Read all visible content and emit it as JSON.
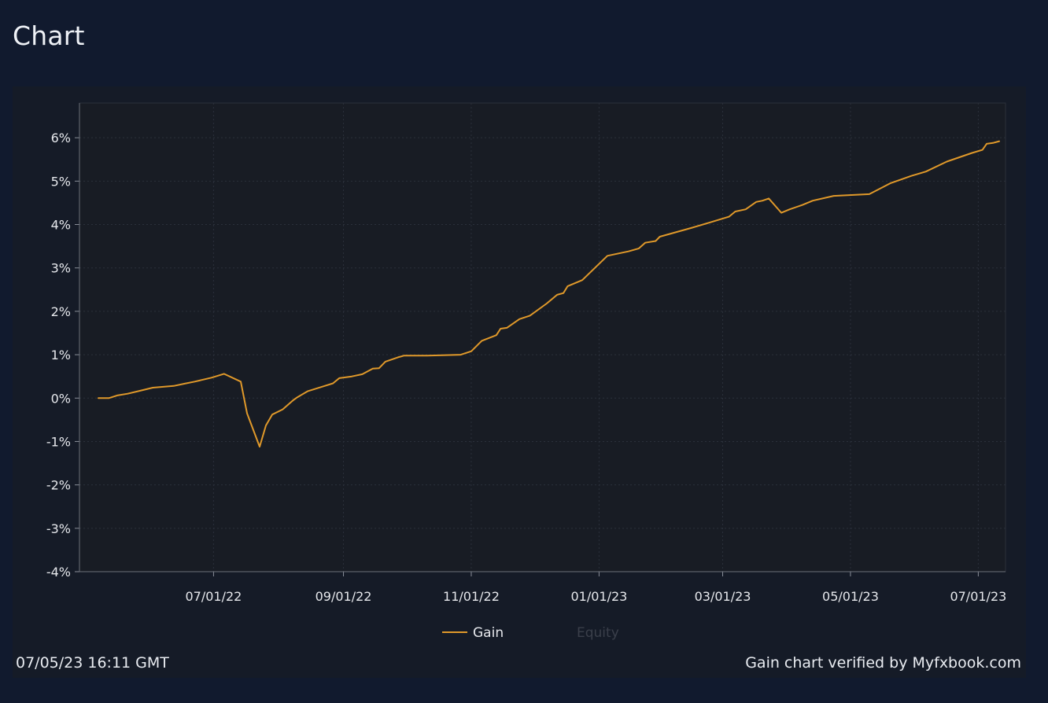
{
  "page": {
    "heading": "Chart"
  },
  "chart_footer": {
    "timestamp": "07/05/23 16:11 GMT",
    "verified_text": "Gain chart verified by Myfxbook.com"
  },
  "colors": {
    "background": "#111a2e",
    "panel": "#151b27",
    "plot": "#181c24",
    "gain_line": "#e0992a",
    "equity_legend": "#3a3f4a"
  },
  "chart_data": {
    "type": "line",
    "title": "",
    "xlabel": "",
    "ylabel": "",
    "ylim": [
      -4,
      6.8
    ],
    "yticks": [
      -4,
      -3,
      -2,
      -1,
      0,
      1,
      2,
      3,
      4,
      5,
      6
    ],
    "ytick_labels": [
      "-4%",
      "-3%",
      "-2%",
      "-1%",
      "0%",
      "1%",
      "2%",
      "3%",
      "4%",
      "5%",
      "6%"
    ],
    "xlim": [
      "2022-04-28",
      "2023-07-14"
    ],
    "xticks": [
      "2022-07-01",
      "2022-09-01",
      "2022-11-01",
      "2023-01-01",
      "2023-03-01",
      "2023-05-01",
      "2023-07-01"
    ],
    "xtick_labels": [
      "07/01/22",
      "09/01/22",
      "11/01/22",
      "01/01/23",
      "03/01/23",
      "05/01/23",
      "07/01/23"
    ],
    "grid": true,
    "legend_position": "bottom-center",
    "legend": [
      {
        "name": "Gain",
        "active": true
      },
      {
        "name": "Equity",
        "active": false
      }
    ],
    "series": [
      {
        "name": "Gain",
        "points": [
          [
            "2022-05-07",
            0.0
          ],
          [
            "2022-05-12",
            0.0
          ],
          [
            "2022-05-16",
            0.06
          ],
          [
            "2022-05-21",
            0.1
          ],
          [
            "2022-05-27",
            0.17
          ],
          [
            "2022-06-02",
            0.24
          ],
          [
            "2022-06-12",
            0.28
          ],
          [
            "2022-06-17",
            0.33
          ],
          [
            "2022-06-22",
            0.38
          ],
          [
            "2022-06-30",
            0.47
          ],
          [
            "2022-07-06",
            0.56
          ],
          [
            "2022-07-14",
            0.38
          ],
          [
            "2022-07-17",
            -0.35
          ],
          [
            "2022-07-23",
            -1.12
          ],
          [
            "2022-07-26",
            -0.63
          ],
          [
            "2022-07-29",
            -0.38
          ],
          [
            "2022-08-03",
            -0.26
          ],
          [
            "2022-08-08",
            -0.05
          ],
          [
            "2022-08-10",
            0.02
          ],
          [
            "2022-08-15",
            0.16
          ],
          [
            "2022-08-23",
            0.28
          ],
          [
            "2022-08-27",
            0.34
          ],
          [
            "2022-08-30",
            0.46
          ],
          [
            "2022-09-05",
            0.5
          ],
          [
            "2022-09-10",
            0.55
          ],
          [
            "2022-09-15",
            0.68
          ],
          [
            "2022-09-18",
            0.69
          ],
          [
            "2022-09-21",
            0.84
          ],
          [
            "2022-09-27",
            0.94
          ],
          [
            "2022-09-30",
            0.98
          ],
          [
            "2022-10-11",
            0.98
          ],
          [
            "2022-10-27",
            1.0
          ],
          [
            "2022-11-01",
            1.08
          ],
          [
            "2022-11-06",
            1.32
          ],
          [
            "2022-11-13",
            1.45
          ],
          [
            "2022-11-15",
            1.6
          ],
          [
            "2022-11-18",
            1.62
          ],
          [
            "2022-11-24",
            1.82
          ],
          [
            "2022-11-29",
            1.9
          ],
          [
            "2022-12-07",
            2.18
          ],
          [
            "2022-12-12",
            2.38
          ],
          [
            "2022-12-15",
            2.42
          ],
          [
            "2022-12-17",
            2.58
          ],
          [
            "2022-12-24",
            2.72
          ],
          [
            "2023-01-05",
            3.28
          ],
          [
            "2023-01-15",
            3.38
          ],
          [
            "2023-01-20",
            3.45
          ],
          [
            "2023-01-23",
            3.58
          ],
          [
            "2023-01-28",
            3.62
          ],
          [
            "2023-01-30",
            3.72
          ],
          [
            "2023-02-14",
            3.92
          ],
          [
            "2023-02-23",
            4.05
          ],
          [
            "2023-03-04",
            4.18
          ],
          [
            "2023-03-07",
            4.3
          ],
          [
            "2023-03-12",
            4.35
          ],
          [
            "2023-03-17",
            4.52
          ],
          [
            "2023-03-20",
            4.55
          ],
          [
            "2023-03-23",
            4.6
          ],
          [
            "2023-03-29",
            4.27
          ],
          [
            "2023-04-02",
            4.35
          ],
          [
            "2023-04-08",
            4.45
          ],
          [
            "2023-04-13",
            4.55
          ],
          [
            "2023-04-23",
            4.66
          ],
          [
            "2023-05-10",
            4.7
          ],
          [
            "2023-05-20",
            4.95
          ],
          [
            "2023-05-30",
            5.12
          ],
          [
            "2023-06-06",
            5.22
          ],
          [
            "2023-06-16",
            5.45
          ],
          [
            "2023-06-28",
            5.65
          ],
          [
            "2023-07-03",
            5.72
          ],
          [
            "2023-07-05",
            5.86
          ],
          [
            "2023-07-08",
            5.88
          ],
          [
            "2023-07-11",
            5.92
          ]
        ]
      }
    ]
  }
}
